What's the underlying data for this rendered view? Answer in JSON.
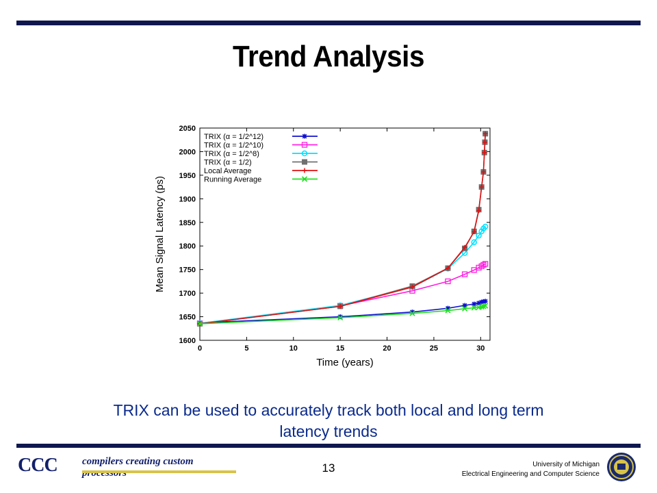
{
  "slide": {
    "title": "Trend Analysis",
    "caption_line1": "TRIX can be used to accurately track both local and long term",
    "caption_line2": "latency trends",
    "page_number": "13"
  },
  "footer": {
    "logo_text": "CCC",
    "logo_tagline": "compilers creating custom processors",
    "university_line1": "University of Michigan",
    "university_line2": "Electrical Engineering and Computer Science",
    "accent_color": "#10174f"
  },
  "chart_data": {
    "type": "line",
    "title": "",
    "xlabel": "Time (years)",
    "ylabel": "Mean Signal Latency (ps)",
    "xlim": [
      0,
      31
    ],
    "ylim": [
      1600,
      2050
    ],
    "xticks": [
      0,
      5,
      10,
      15,
      20,
      25,
      30
    ],
    "yticks": [
      1600,
      1650,
      1700,
      1750,
      1800,
      1850,
      1900,
      1950,
      2000,
      2050
    ],
    "legend_position": "top-left",
    "grid": false,
    "series": [
      {
        "name": "TRIX (α = 1/2^12)",
        "color": "#1010d0",
        "marker": "star",
        "x": [
          0,
          15,
          22.7,
          26.5,
          28.3,
          29.3,
          29.8,
          30.1,
          30.3,
          30.5
        ],
        "y": [
          1637,
          1650,
          1660,
          1668,
          1674,
          1677,
          1679,
          1681,
          1682,
          1683
        ]
      },
      {
        "name": "TRIX (α = 1/2^10)",
        "color": "#ff20e0",
        "marker": "square",
        "x": [
          0,
          15,
          22.7,
          26.5,
          28.3,
          29.3,
          29.8,
          30.1,
          30.3,
          30.5
        ],
        "y": [
          1636,
          1673,
          1705,
          1725,
          1740,
          1749,
          1754,
          1757,
          1760,
          1762
        ]
      },
      {
        "name": "TRIX (α = 1/2^8)",
        "color": "#00e0ff",
        "marker": "circle",
        "x": [
          0,
          15,
          22.7,
          26.5,
          28.3,
          29.3,
          29.8,
          30.1,
          30.3,
          30.5
        ],
        "y": [
          1636,
          1674,
          1713,
          1752,
          1785,
          1808,
          1822,
          1831,
          1837,
          1841
        ]
      },
      {
        "name": "TRIX (α = 1/2)",
        "color": "#707070",
        "marker": "filled-square",
        "x": [
          0,
          15,
          22.7,
          26.5,
          28.3,
          29.3,
          29.8,
          30.1,
          30.3,
          30.4,
          30.45,
          30.5
        ],
        "y": [
          1635,
          1672,
          1715,
          1753,
          1795,
          1831,
          1877,
          1925,
          1957,
          1998,
          2020,
          2038
        ]
      },
      {
        "name": "Local Average",
        "color": "#e01010",
        "marker": "plus",
        "x": [
          0,
          15,
          22.7,
          26.5,
          28.3,
          29.3,
          29.8,
          30.1,
          30.3,
          30.4,
          30.45,
          30.5
        ],
        "y": [
          1635,
          1672,
          1713,
          1753,
          1797,
          1830,
          1875,
          1925,
          1957,
          1998,
          2020,
          2038
        ]
      },
      {
        "name": "Running Average",
        "color": "#20e020",
        "marker": "x",
        "x": [
          0,
          15,
          22.7,
          26.5,
          28.3,
          29.3,
          29.8,
          30.1,
          30.3,
          30.5
        ],
        "y": [
          1635,
          1648,
          1657,
          1663,
          1667,
          1669,
          1670,
          1671,
          1672,
          1673
        ]
      }
    ]
  }
}
